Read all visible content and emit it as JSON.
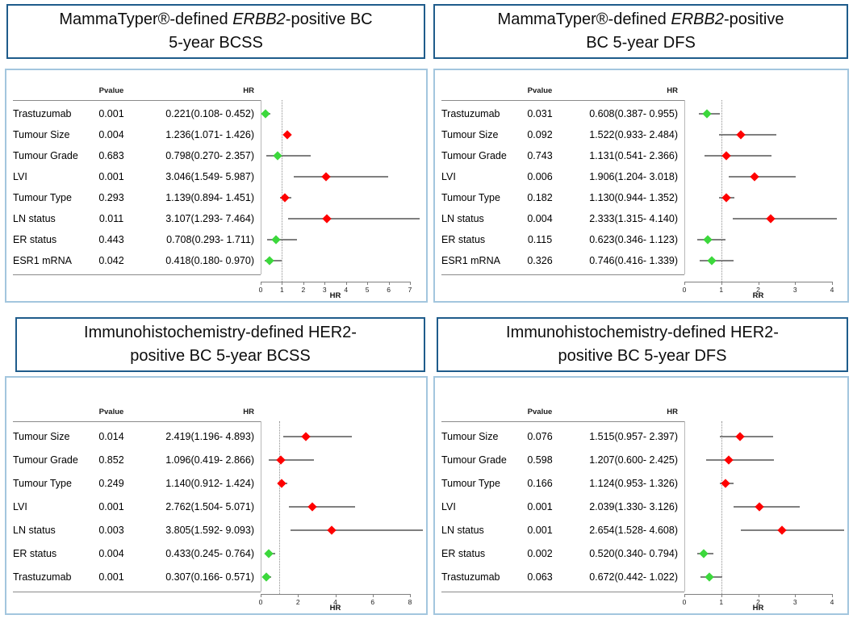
{
  "figure": {
    "colors": {
      "title_border": "#1F5C8B",
      "panel_border": "#A3C6DE",
      "marker_increase": "#FF0000",
      "marker_decrease": "#3CD83C",
      "ci_line": "#7F7F7F",
      "text": "#000000"
    },
    "reference_line": 1
  },
  "chart_data": [
    {
      "type": "scatter",
      "variant": "forest-plot",
      "title": "MammaTyper®-defined ERBB2-positive BC 5-year BCSS",
      "title_pre": "MammaTyper®-defined ",
      "title_italic": "ERBB2",
      "title_post": "-positive BC\n5-year BCSS",
      "col_pvalue": "Pvalue",
      "col_hr": "HR",
      "axis": {
        "label": "HR",
        "min": 0,
        "max": 7,
        "ticks": [
          0,
          1,
          2,
          3,
          4,
          5,
          6,
          7
        ]
      },
      "rows": [
        {
          "label": "Trastuzumab",
          "pvalue": "0.001",
          "hr_text": "0.221(0.108- 0.452)",
          "hr": 0.221,
          "ci_low": 0.108,
          "ci_high": 0.452
        },
        {
          "label": "Tumour Size",
          "pvalue": "0.004",
          "hr_text": "1.236(1.071- 1.426)",
          "hr": 1.236,
          "ci_low": 1.071,
          "ci_high": 1.426
        },
        {
          "label": "Tumour Grade",
          "pvalue": "0.683",
          "hr_text": "0.798(0.270- 2.357)",
          "hr": 0.798,
          "ci_low": 0.27,
          "ci_high": 2.357
        },
        {
          "label": "LVI",
          "pvalue": "0.001",
          "hr_text": "3.046(1.549- 5.987)",
          "hr": 3.046,
          "ci_low": 1.549,
          "ci_high": 5.987
        },
        {
          "label": "Tumour Type",
          "pvalue": "0.293",
          "hr_text": "1.139(0.894- 1.451)",
          "hr": 1.139,
          "ci_low": 0.894,
          "ci_high": 1.451
        },
        {
          "label": "LN status",
          "pvalue": "0.011",
          "hr_text": "3.107(1.293- 7.464)",
          "hr": 3.107,
          "ci_low": 1.293,
          "ci_high": 7.464
        },
        {
          "label": "ER status",
          "pvalue": "0.443",
          "hr_text": "0.708(0.293- 1.711)",
          "hr": 0.708,
          "ci_low": 0.293,
          "ci_high": 1.711
        },
        {
          "label": "ESR1 mRNA",
          "pvalue": "0.042",
          "hr_text": "0.418(0.180- 0.970)",
          "hr": 0.418,
          "ci_low": 0.18,
          "ci_high": 0.97
        }
      ]
    },
    {
      "type": "scatter",
      "variant": "forest-plot",
      "title": "MammaTyper®-defined ERBB2-positive BC 5-year DFS",
      "title_pre": "MammaTyper®-defined ",
      "title_italic": "ERBB2",
      "title_post": "-positive\nBC 5-year DFS",
      "col_pvalue": "Pvalue",
      "col_hr": "HR",
      "axis": {
        "label": "RR",
        "min": 0,
        "max": 4,
        "ticks": [
          0,
          1,
          2,
          3,
          4
        ]
      },
      "rows": [
        {
          "label": "Trastuzumab",
          "pvalue": "0.031",
          "hr_text": "0.608(0.387- 0.955)",
          "hr": 0.608,
          "ci_low": 0.387,
          "ci_high": 0.955
        },
        {
          "label": "Tumour Size",
          "pvalue": "0.092",
          "hr_text": "1.522(0.933- 2.484)",
          "hr": 1.522,
          "ci_low": 0.933,
          "ci_high": 2.484
        },
        {
          "label": "Tumour Grade",
          "pvalue": "0.743",
          "hr_text": "1.131(0.541- 2.366)",
          "hr": 1.131,
          "ci_low": 0.541,
          "ci_high": 2.366
        },
        {
          "label": "LVI",
          "pvalue": "0.006",
          "hr_text": "1.906(1.204- 3.018)",
          "hr": 1.906,
          "ci_low": 1.204,
          "ci_high": 3.018
        },
        {
          "label": "Tumour Type",
          "pvalue": "0.182",
          "hr_text": "1.130(0.944- 1.352)",
          "hr": 1.13,
          "ci_low": 0.944,
          "ci_high": 1.352
        },
        {
          "label": "LN status",
          "pvalue": "0.004",
          "hr_text": "2.333(1.315- 4.140)",
          "hr": 2.333,
          "ci_low": 1.315,
          "ci_high": 4.14
        },
        {
          "label": "ER status",
          "pvalue": "0.115",
          "hr_text": "0.623(0.346- 1.123)",
          "hr": 0.623,
          "ci_low": 0.346,
          "ci_high": 1.123
        },
        {
          "label": "ESR1 mRNA",
          "pvalue": "0.326",
          "hr_text": "0.746(0.416- 1.339)",
          "hr": 0.746,
          "ci_low": 0.416,
          "ci_high": 1.339
        }
      ]
    },
    {
      "type": "scatter",
      "variant": "forest-plot",
      "title": "Immunohistochemistry-defined HER2-positive BC 5-year BCSS",
      "title_pre": "Immunohistochemistry-defined HER2-\npositive BC 5-year BCSS",
      "title_italic": "",
      "title_post": "",
      "col_pvalue": "Pvalue",
      "col_hr": "HR",
      "axis": {
        "label": "HR",
        "min": 0,
        "max": 8,
        "ticks": [
          0,
          2,
          4,
          6,
          8
        ]
      },
      "rows": [
        {
          "label": "Tumour Size",
          "pvalue": "0.014",
          "hr_text": "2.419(1.196- 4.893)",
          "hr": 2.419,
          "ci_low": 1.196,
          "ci_high": 4.893
        },
        {
          "label": "Tumour Grade",
          "pvalue": "0.852",
          "hr_text": "1.096(0.419- 2.866)",
          "hr": 1.096,
          "ci_low": 0.419,
          "ci_high": 2.866
        },
        {
          "label": "Tumour Type",
          "pvalue": "0.249",
          "hr_text": "1.140(0.912- 1.424)",
          "hr": 1.14,
          "ci_low": 0.912,
          "ci_high": 1.424
        },
        {
          "label": "LVI",
          "pvalue": "0.001",
          "hr_text": "2.762(1.504- 5.071)",
          "hr": 2.762,
          "ci_low": 1.504,
          "ci_high": 5.071
        },
        {
          "label": "LN status",
          "pvalue": "0.003",
          "hr_text": "3.805(1.592- 9.093)",
          "hr": 3.805,
          "ci_low": 1.592,
          "ci_high": 9.093
        },
        {
          "label": "ER status",
          "pvalue": "0.004",
          "hr_text": "0.433(0.245- 0.764)",
          "hr": 0.433,
          "ci_low": 0.245,
          "ci_high": 0.764
        },
        {
          "label": "Trastuzumab",
          "pvalue": "0.001",
          "hr_text": "0.307(0.166- 0.571)",
          "hr": 0.307,
          "ci_low": 0.166,
          "ci_high": 0.571
        }
      ]
    },
    {
      "type": "scatter",
      "variant": "forest-plot",
      "title": "Immunohistochemistry-defined HER2-positive BC 5-year DFS",
      "title_pre": "Immunohistochemistry-defined HER2-\npositive BC 5-year DFS",
      "title_italic": "",
      "title_post": "",
      "col_pvalue": "Pvalue",
      "col_hr": "HR",
      "axis": {
        "label": "HR",
        "min": 0,
        "max": 4,
        "ticks": [
          0,
          1,
          2,
          3,
          4
        ]
      },
      "rows": [
        {
          "label": "Tumour Size",
          "pvalue": "0.076",
          "hr_text": "1.515(0.957- 2.397)",
          "hr": 1.515,
          "ci_low": 0.957,
          "ci_high": 2.397
        },
        {
          "label": "Tumour Grade",
          "pvalue": "0.598",
          "hr_text": "1.207(0.600- 2.425)",
          "hr": 1.207,
          "ci_low": 0.6,
          "ci_high": 2.425
        },
        {
          "label": "Tumour Type",
          "pvalue": "0.166",
          "hr_text": "1.124(0.953- 1.326)",
          "hr": 1.124,
          "ci_low": 0.953,
          "ci_high": 1.326
        },
        {
          "label": "LVI",
          "pvalue": "0.001",
          "hr_text": "2.039(1.330- 3.126)",
          "hr": 2.039,
          "ci_low": 1.33,
          "ci_high": 3.126
        },
        {
          "label": "LN status",
          "pvalue": "0.001",
          "hr_text": "2.654(1.528- 4.608)",
          "hr": 2.654,
          "ci_low": 1.528,
          "ci_high": 4.608
        },
        {
          "label": "ER status",
          "pvalue": "0.002",
          "hr_text": "0.520(0.340- 0.794)",
          "hr": 0.52,
          "ci_low": 0.34,
          "ci_high": 0.794
        },
        {
          "label": "Trastuzumab",
          "pvalue": "0.063",
          "hr_text": "0.672(0.442- 1.022)",
          "hr": 0.672,
          "ci_low": 0.442,
          "ci_high": 1.022
        }
      ]
    }
  ]
}
